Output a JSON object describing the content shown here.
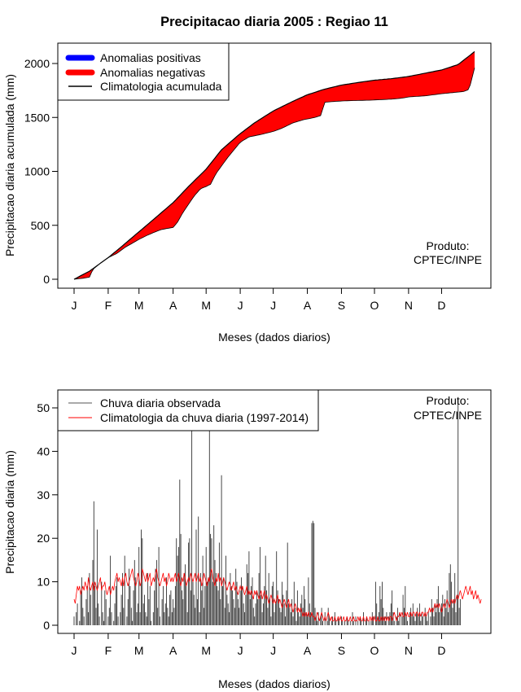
{
  "title": "Precipitacao diaria 2005 : Regiao 11",
  "credit": [
    "Produto:",
    "CPTEC/INPE"
  ],
  "chart_data": [
    {
      "type": "area",
      "ylabel": "Precipitacao diaria acumulada (mm)",
      "xlabel": "Meses (dados diarios)",
      "x_ticks": [
        "J",
        "F",
        "M",
        "A",
        "M",
        "J",
        "J",
        "A",
        "S",
        "O",
        "N",
        "D"
      ],
      "x_tick_days": [
        1,
        32,
        60,
        91,
        121,
        152,
        182,
        213,
        244,
        274,
        305,
        335
      ],
      "xlim": [
        1,
        365
      ],
      "ylim": [
        0,
        2100
      ],
      "y_ticks": [
        0,
        500,
        1000,
        1500,
        2000
      ],
      "legend": [
        {
          "label": "Anomalias positivas",
          "color": "#0000ff",
          "style": "thick-line"
        },
        {
          "label": "Anomalias negativas",
          "color": "#ff0000",
          "style": "thick-line"
        },
        {
          "label": "Climatologia acumulada",
          "color": "#000000",
          "style": "line"
        }
      ],
      "climatology": {
        "x": [
          1,
          15,
          32,
          45,
          60,
          75,
          91,
          105,
          121,
          135,
          152,
          165,
          182,
          200,
          213,
          228,
          244,
          260,
          274,
          290,
          305,
          320,
          335,
          350,
          365
        ],
        "y": [
          0,
          75,
          200,
          310,
          440,
          570,
          710,
          860,
          1020,
          1200,
          1350,
          1450,
          1560,
          1650,
          1710,
          1760,
          1800,
          1825,
          1845,
          1860,
          1880,
          1910,
          1940,
          1990,
          2110
        ]
      },
      "observed": {
        "x": [
          1,
          5,
          10,
          15,
          18,
          25,
          32,
          40,
          48,
          55,
          60,
          68,
          75,
          80,
          85,
          91,
          95,
          100,
          110,
          116,
          121,
          125,
          130,
          140,
          152,
          160,
          170,
          182,
          190,
          200,
          210,
          220,
          226,
          228,
          240,
          250,
          270,
          280,
          290,
          300,
          305,
          320,
          335,
          345,
          355,
          360,
          365
        ],
        "y": [
          0,
          5,
          10,
          20,
          90,
          150,
          200,
          240,
          300,
          340,
          370,
          410,
          440,
          460,
          470,
          480,
          530,
          620,
          770,
          840,
          860,
          880,
          980,
          1120,
          1270,
          1320,
          1340,
          1370,
          1400,
          1450,
          1480,
          1500,
          1520,
          1640,
          1650,
          1655,
          1660,
          1665,
          1670,
          1680,
          1690,
          1700,
          1720,
          1730,
          1740,
          1760,
          1960
        ]
      },
      "credit_position": "bottom-right",
      "legend_position": "top-left"
    },
    {
      "type": "bar",
      "ylabel": "Precipitacao diaria (mm)",
      "xlabel": "Meses (dados diarios)",
      "x_ticks": [
        "J",
        "F",
        "M",
        "A",
        "M",
        "J",
        "J",
        "A",
        "S",
        "O",
        "N",
        "D"
      ],
      "x_tick_days": [
        1,
        32,
        60,
        91,
        121,
        152,
        182,
        213,
        244,
        274,
        305,
        335
      ],
      "xlim": [
        1,
        365
      ],
      "ylim": [
        0,
        52
      ],
      "y_ticks": [
        0,
        10,
        20,
        30,
        40,
        50
      ],
      "legend": [
        {
          "label": "Chuva diaria observada",
          "color": "#555555",
          "style": "line"
        },
        {
          "label": "Climatologia da chuva diaria (1997-2014)",
          "color": "#ff0000",
          "style": "line"
        }
      ],
      "legend_position": "top-left",
      "credit_position": "top-right",
      "observed_daily": [
        2,
        0,
        3,
        5,
        0,
        1,
        8,
        11,
        4,
        2,
        0,
        6,
        9,
        3,
        12,
        7,
        0,
        15,
        28.5,
        9,
        4,
        22,
        5,
        2,
        0,
        10,
        3,
        1,
        8,
        6,
        0,
        2,
        4,
        16,
        3,
        0,
        1,
        5,
        9,
        11,
        2,
        0,
        3,
        7,
        12,
        4,
        16,
        0,
        2,
        6,
        13,
        9,
        4,
        1,
        8,
        15,
        11,
        3,
        5,
        18,
        3,
        22,
        20,
        5,
        7,
        3,
        2,
        12,
        6,
        9,
        1,
        0,
        3,
        8,
        13,
        15,
        4,
        18,
        2,
        0,
        6,
        9,
        3,
        5,
        11,
        4,
        2,
        7,
        8,
        3,
        6,
        4,
        9,
        20,
        16,
        18,
        33.5,
        21,
        8,
        6,
        12,
        14,
        9,
        3,
        19,
        20,
        8,
        45,
        10,
        7,
        4,
        22,
        6,
        25,
        3,
        12,
        8,
        16,
        4,
        9,
        18,
        10,
        11,
        45,
        21,
        20,
        10,
        23,
        15,
        12,
        9,
        8,
        19,
        6,
        34.5,
        9,
        11,
        4,
        16,
        7,
        5,
        3,
        12,
        9,
        8,
        6,
        4,
        13,
        10,
        6,
        4,
        8,
        11,
        9,
        5,
        3,
        7,
        14,
        12,
        17,
        6,
        9,
        11,
        4,
        2,
        5,
        8,
        6,
        12,
        18,
        7,
        3,
        5,
        9,
        16,
        8,
        4,
        12,
        6,
        2,
        9,
        10,
        3,
        5,
        17,
        8,
        6,
        4,
        3,
        10,
        7,
        5,
        2,
        8,
        19,
        5,
        4,
        3,
        6,
        2,
        10,
        4,
        1,
        8,
        3,
        2,
        5,
        7,
        4,
        9,
        6,
        3,
        2,
        11,
        5,
        3,
        23.5,
        24,
        23.5,
        4,
        2,
        1,
        3,
        0,
        2,
        4,
        1,
        0,
        3,
        0,
        1,
        4,
        2,
        0,
        1,
        2,
        0,
        3,
        1,
        0,
        2,
        1,
        0,
        2,
        1,
        0,
        1,
        0,
        2,
        1,
        0,
        1,
        0,
        3,
        1,
        0,
        2,
        0,
        1,
        0,
        2,
        1,
        0,
        3,
        0,
        1,
        2,
        0,
        1,
        0,
        1,
        3,
        2,
        0,
        10,
        5,
        2,
        3,
        9,
        6,
        10,
        4,
        2,
        1,
        3,
        0,
        2,
        3,
        5,
        8,
        3,
        1,
        0,
        2,
        4,
        1,
        3,
        0,
        2,
        7,
        4,
        9,
        2,
        1,
        0,
        3,
        4,
        2,
        5,
        2,
        1,
        3,
        4,
        2,
        5,
        1,
        3,
        2,
        0,
        4,
        2,
        1,
        3,
        0,
        2,
        6,
        4,
        2,
        5,
        3,
        6,
        9,
        3,
        4,
        5,
        7,
        2,
        6,
        4,
        8,
        3,
        12,
        14,
        10,
        4,
        6,
        12,
        3,
        7,
        52,
        4,
        6
      ],
      "climatology_daily": [
        6,
        5,
        7,
        9,
        8,
        9,
        7,
        8,
        9,
        8,
        10,
        9,
        8,
        11,
        9,
        8,
        9,
        10,
        8,
        10,
        9,
        8,
        9,
        10,
        11,
        8,
        9,
        9,
        10,
        8,
        7,
        8,
        9,
        7,
        8,
        9,
        8,
        10,
        11,
        12,
        10,
        11,
        10,
        9,
        11,
        9,
        11,
        12,
        10,
        9,
        10,
        11,
        12,
        13,
        11,
        10,
        9,
        10,
        12,
        11,
        9,
        10,
        13,
        12,
        11,
        10,
        12,
        10,
        11,
        12,
        9,
        10,
        11,
        10,
        12,
        13,
        11,
        10,
        9,
        10,
        11,
        12,
        10,
        11,
        9,
        10,
        12,
        11,
        10,
        11,
        10,
        11,
        12,
        10,
        11,
        12,
        10,
        9,
        11,
        10,
        12,
        11,
        9,
        10,
        11,
        10,
        12,
        11,
        10,
        11,
        12,
        10,
        11,
        12,
        10,
        11,
        9,
        10,
        12,
        11,
        10,
        9,
        11,
        10,
        12,
        13,
        11,
        10,
        9,
        11,
        10,
        12,
        10,
        11,
        9,
        10,
        11,
        10,
        9,
        8,
        9,
        10,
        9,
        8,
        9,
        10,
        8,
        9,
        8,
        7,
        8,
        9,
        8,
        9,
        8,
        7,
        8,
        9,
        7,
        8,
        7,
        8,
        7,
        6,
        8,
        7,
        8,
        7,
        6,
        7,
        8,
        6,
        7,
        8,
        6,
        7,
        6,
        5,
        6,
        7,
        6,
        5,
        6,
        5,
        6,
        7,
        5,
        6,
        5,
        4,
        5,
        6,
        5,
        4,
        5,
        6,
        4,
        5,
        4,
        3,
        4,
        5,
        4,
        3,
        4,
        3,
        4,
        3,
        2,
        3,
        2,
        3,
        2,
        3,
        2,
        2,
        3,
        2,
        2,
        1,
        2,
        3,
        2,
        1,
        2,
        3,
        2,
        1,
        2,
        1,
        2,
        3,
        2,
        1,
        2,
        1,
        1,
        2,
        1,
        1,
        2,
        1,
        2,
        1,
        1,
        2,
        1,
        1,
        2,
        1,
        1,
        2,
        1,
        1,
        2,
        1,
        1,
        1,
        2,
        1,
        2,
        1,
        1,
        2,
        1,
        1,
        2,
        1,
        1,
        2,
        1,
        2,
        1,
        2,
        1,
        1,
        2,
        1,
        1,
        2,
        1,
        2,
        1,
        2,
        1,
        2,
        1,
        2,
        2,
        1,
        2,
        3,
        2,
        1,
        2,
        2,
        3,
        2,
        3,
        2,
        2,
        3,
        2,
        3,
        2,
        2,
        3,
        2,
        3,
        3,
        2,
        3,
        3,
        2,
        3,
        2,
        3,
        3,
        2,
        3,
        2,
        3,
        3,
        4,
        3,
        4,
        3,
        4,
        5,
        4,
        5,
        4,
        5,
        4,
        3,
        4,
        5,
        4,
        5,
        6,
        5,
        4,
        5,
        6,
        5,
        6,
        5,
        6,
        7,
        6,
        7,
        8,
        7,
        6,
        7,
        8,
        9,
        8,
        7,
        8,
        9,
        7,
        8,
        6,
        7,
        8,
        6,
        7,
        6,
        5,
        6
      ]
    }
  ]
}
